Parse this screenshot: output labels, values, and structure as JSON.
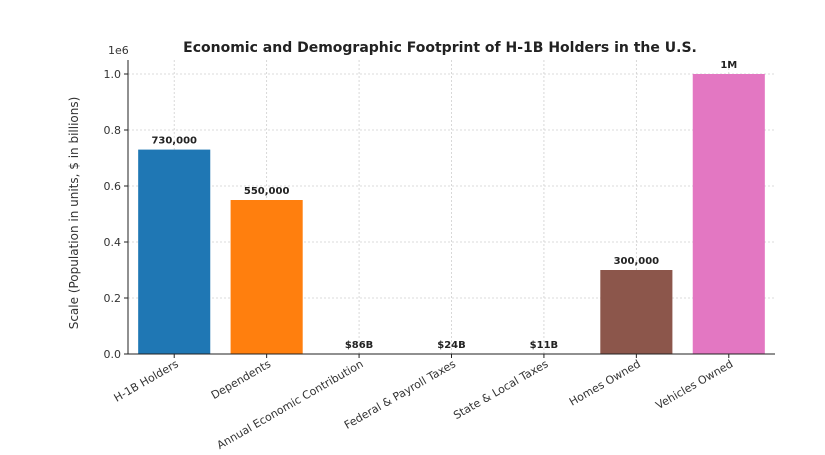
{
  "chart_data": {
    "type": "bar",
    "title": "Economic and Demographic Footprint of H-1B Holders in the U.S.",
    "xlabel": "",
    "ylabel": "Scale (Population in units, $ in billions)",
    "offset_label": "1e6",
    "ylim": [
      0,
      1050000
    ],
    "yticks": [
      0,
      200000,
      400000,
      600000,
      800000,
      1000000
    ],
    "ytick_labels": [
      "0.0",
      "0.2",
      "0.4",
      "0.6",
      "0.8",
      "1.0"
    ],
    "grid": true,
    "categories": [
      "H-1B Holders",
      "Dependents",
      "Annual Economic Contribution",
      "Federal & Payroll Taxes",
      "State & Local Taxes",
      "Homes Owned",
      "Vehicles Owned"
    ],
    "values": [
      730000,
      550000,
      86,
      24,
      11,
      300000,
      1000000
    ],
    "data_labels": [
      "730,000",
      "550,000",
      "$86B",
      "$24B",
      "$11B",
      "300,000",
      "1M"
    ],
    "colors": [
      "#1f77b4",
      "#ff7f0e",
      "#2ca02c",
      "#d62728",
      "#9467bd",
      "#8c564b",
      "#e377c2"
    ]
  }
}
